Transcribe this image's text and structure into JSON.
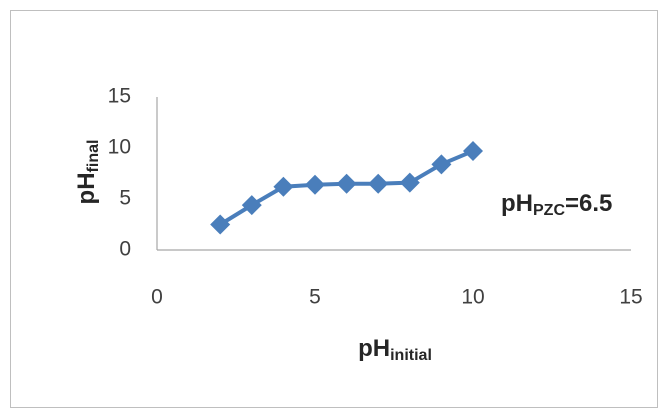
{
  "chart_data": {
    "type": "line",
    "x": [
      2,
      3,
      4,
      5,
      6,
      7,
      8,
      9,
      10
    ],
    "series": [
      {
        "color": "#4a7ebb",
        "values": [
          2.5,
          4.4,
          6.2,
          6.4,
          6.5,
          6.5,
          6.6,
          8.4,
          9.7
        ]
      }
    ],
    "xlim": [
      0,
      15
    ],
    "xticks": [
      0,
      5,
      10,
      15
    ],
    "ylim": [
      0,
      15
    ],
    "yticks": [
      0,
      5,
      10,
      15
    ],
    "grid": false,
    "xlabel": "pH",
    "xlabel_sub": "initial",
    "ylabel": "pH",
    "ylabel_sub": "final",
    "annotation": {
      "main": "pH",
      "sub": "PZC",
      "rest": "=6.5"
    }
  }
}
